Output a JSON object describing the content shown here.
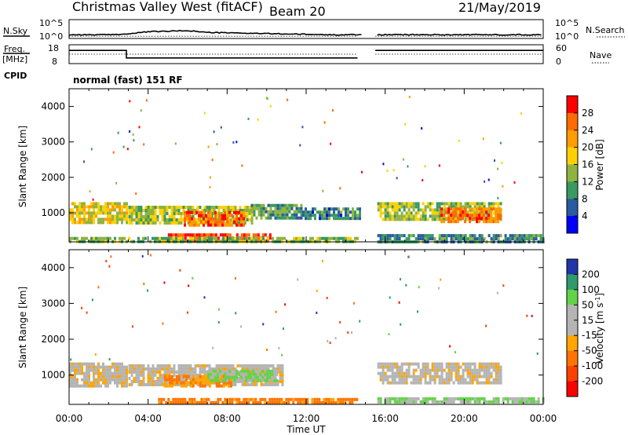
{
  "header": {
    "station": "Christmas Valley West (fitACF)",
    "beam": "Beam 20",
    "date": "21/May/2019"
  },
  "left_labels": {
    "nsky": "N.Sky",
    "freq": "Freq.",
    "freq_unit": "[MHz]",
    "cpid": "CPID"
  },
  "right_labels": {
    "nsearch": "N.Search",
    "nave": "Nave"
  },
  "cpid_text": "normal (fast) 151 RF",
  "noise_panel": {
    "left_ticks": [
      "10^5",
      "10^0"
    ],
    "right_ticks": [
      "10^5",
      "10^0"
    ]
  },
  "freq_panel": {
    "left_ticks": [
      "18",
      "8"
    ],
    "right_ticks": [
      "60",
      "0"
    ]
  },
  "x_axis": {
    "label": "Time UT",
    "ticks": [
      "00:00",
      "04:00",
      "08:00",
      "12:00",
      "16:00",
      "20:00",
      "00:00"
    ]
  },
  "power_panel": {
    "ylabel": "Slant Range [km]",
    "yticks": [
      "4000",
      "3000",
      "2000",
      "1000"
    ]
  },
  "velocity_panel": {
    "ylabel": "Slant Range [km]",
    "yticks": [
      "4000",
      "3000",
      "2000",
      "1000"
    ]
  },
  "colorbars": {
    "power": {
      "label": "Power [dB]",
      "ticks": [
        "28",
        "24",
        "20",
        "16",
        "12",
        "8",
        "4"
      ],
      "colors": [
        "#ff0000",
        "#ff6a00",
        "#ff9d00",
        "#ffd000",
        "#8fb341",
        "#3a9960",
        "#2a5aa0",
        "#0000ff"
      ]
    },
    "velocity": {
      "label": "Velocity [m s",
      "label_sup": "-1",
      "label_end": "]",
      "ticks": [
        "200",
        "100",
        "50",
        "15",
        "-15",
        "-50",
        "-100",
        "-200"
      ],
      "colors": [
        "#2036a8",
        "#2e9a6e",
        "#64d24a",
        "#b4b4b4",
        "#b4b4b4",
        "#ffa500",
        "#ff7400",
        "#ff4000",
        "#ff0000"
      ]
    }
  },
  "chart_data": [
    {
      "type": "heatmap",
      "title": "Power [dB]",
      "xlabel": "Time UT",
      "ylabel": "Slant Range [km]",
      "xlim": [
        0,
        24
      ],
      "ylim": [
        180,
        4500
      ],
      "scale": [
        0,
        32
      ],
      "gap_hours": [
        14.8,
        15.5
      ],
      "regions": [
        {
          "t": [
            0.0,
            2.9
          ],
          "r": [
            700,
            1300
          ],
          "value": 17
        },
        {
          "t": [
            3.0,
            9.2
          ],
          "r": [
            750,
            1200
          ],
          "value": 15
        },
        {
          "t": [
            5.8,
            8.8
          ],
          "r": [
            650,
            1050
          ],
          "value": 26
        },
        {
          "t": [
            9.2,
            11.8
          ],
          "r": [
            850,
            1250
          ],
          "value": 11
        },
        {
          "t": [
            11.8,
            14.7
          ],
          "r": [
            800,
            1150
          ],
          "value": 8
        },
        {
          "t": [
            15.6,
            21.8
          ],
          "r": [
            800,
            1300
          ],
          "value": 15
        },
        {
          "t": [
            18.8,
            21.8
          ],
          "r": [
            750,
            1150
          ],
          "value": 25
        },
        {
          "t": [
            5.0,
            10.2
          ],
          "r": [
            230,
            420
          ],
          "value": 29
        },
        {
          "t": [
            0.0,
            14.6
          ],
          "r": [
            220,
            320
          ],
          "value": 13
        },
        {
          "t": [
            15.6,
            24.0
          ],
          "r": [
            220,
            400
          ],
          "value": 9
        }
      ]
    },
    {
      "type": "heatmap",
      "title": "Velocity [m s-1]",
      "xlabel": "Time UT",
      "ylabel": "Slant Range [km]",
      "xlim": [
        0,
        24
      ],
      "ylim": [
        180,
        4500
      ],
      "scale": [
        -250,
        250
      ],
      "gap_hours": [
        14.8,
        15.5
      ],
      "regions": [
        {
          "t": [
            0.0,
            2.9
          ],
          "r": [
            700,
            1350
          ],
          "value": 0
        },
        {
          "t": [
            3.0,
            10.8
          ],
          "r": [
            750,
            1300
          ],
          "value": 0
        },
        {
          "t": [
            4.8,
            8.2
          ],
          "r": [
            700,
            1000
          ],
          "value": -50
        },
        {
          "t": [
            7.0,
            10.5
          ],
          "r": [
            850,
            1150
          ],
          "value": 60
        },
        {
          "t": [
            15.6,
            21.8
          ],
          "r": [
            800,
            1350
          ],
          "value": 0
        },
        {
          "t": [
            4.5,
            14.6
          ],
          "r": [
            230,
            360
          ],
          "value": -70
        },
        {
          "t": [
            15.6,
            24.0
          ],
          "r": [
            220,
            380
          ],
          "value": 50
        }
      ]
    },
    {
      "type": "line",
      "title": "N.Sky",
      "xlim": [
        0,
        24
      ],
      "ylim": [
        0,
        5
      ],
      "x": [
        0,
        1,
        2,
        3,
        4,
        5,
        6,
        7,
        8,
        9,
        10,
        11,
        12,
        13,
        14,
        14.8,
        15.5,
        16,
        18,
        20,
        22,
        24
      ],
      "y": [
        1.0,
        1.0,
        1.0,
        1.2,
        1.8,
        1.9,
        2.1,
        1.6,
        1.5,
        1.4,
        1.3,
        1.2,
        1.1,
        1.0,
        1.0,
        1.0,
        1.0,
        1.0,
        1.0,
        1.0,
        1.0,
        1.0
      ]
    },
    {
      "type": "line",
      "title": "Freq.",
      "xlim": [
        0,
        24
      ],
      "ylim": [
        8,
        18
      ],
      "x": [
        0,
        2.9,
        2.9,
        14.6,
        15.5,
        24
      ],
      "y": [
        15,
        15,
        11,
        11,
        15,
        15
      ]
    }
  ]
}
